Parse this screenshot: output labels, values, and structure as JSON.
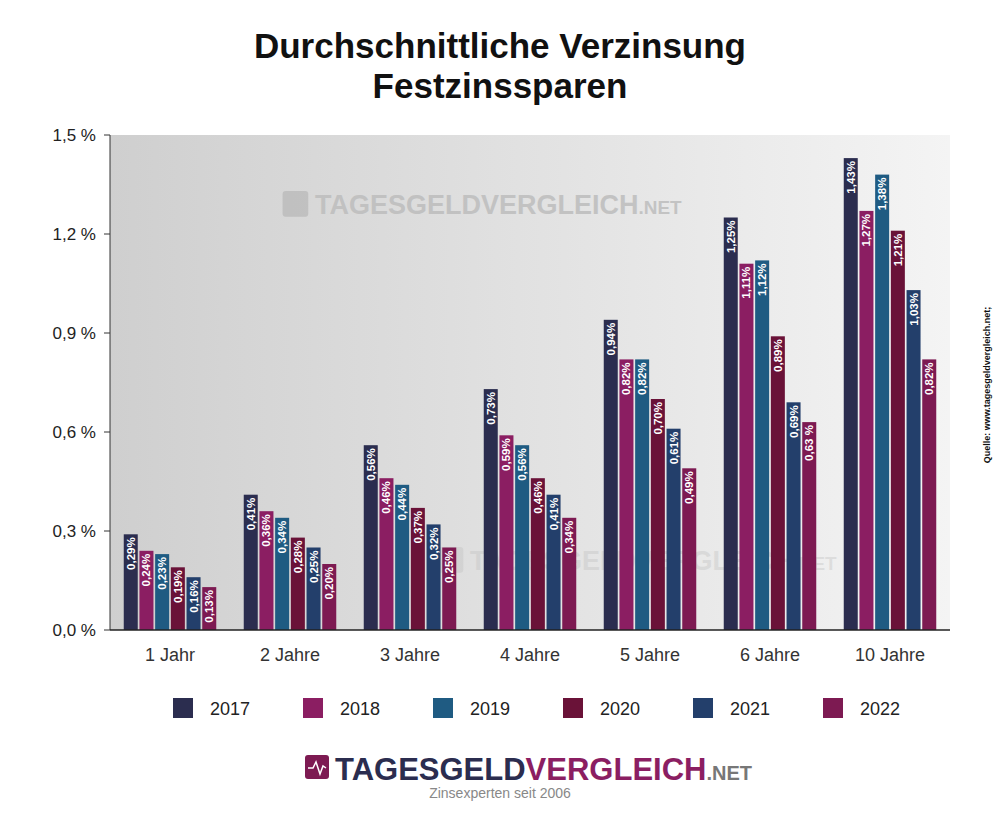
{
  "chart_data": {
    "type": "bar",
    "title": [
      "Durchschnittliche Verzinsung",
      "Festzinssparen"
    ],
    "categories": [
      "1 Jahr",
      "2 Jahre",
      "3 Jahre",
      "4 Jahre",
      "5 Jahre",
      "6 Jahre",
      "10 Jahre"
    ],
    "series": [
      {
        "name": "2017",
        "color": "#2b2d4f",
        "values": [
          0.29,
          0.41,
          0.56,
          0.73,
          0.94,
          1.25,
          1.43
        ],
        "value_labels": [
          "0,29%",
          "0,41%",
          "0,56%",
          "0,73%",
          "0,94%",
          "1,25%",
          "1,43%"
        ]
      },
      {
        "name": "2018",
        "color": "#8b1e62",
        "values": [
          0.24,
          0.36,
          0.46,
          0.59,
          0.82,
          1.11,
          1.27
        ],
        "value_labels": [
          "0,24%",
          "0,36%",
          "0,46%",
          "0,59%",
          "0,82%",
          "1,11%",
          "1,27%"
        ]
      },
      {
        "name": "2019",
        "color": "#1f5b82",
        "values": [
          0.23,
          0.34,
          0.44,
          0.56,
          0.82,
          1.12,
          1.38
        ],
        "value_labels": [
          "0,23%",
          "0,34%",
          "0,44%",
          "0,56%",
          "0,82%",
          "1,12%",
          "1,38%"
        ]
      },
      {
        "name": "2020",
        "color": "#6a1238",
        "values": [
          0.19,
          0.28,
          0.37,
          0.46,
          0.7,
          0.89,
          1.21
        ],
        "value_labels": [
          "0,19%",
          "0,28%",
          "0,37%",
          "0,46%",
          "0,70%",
          "0,89%",
          "1,21%"
        ]
      },
      {
        "name": "2021",
        "color": "#233f6b",
        "values": [
          0.16,
          0.25,
          0.32,
          0.41,
          0.61,
          0.69,
          1.03
        ],
        "value_labels": [
          "0,16%",
          "0,25%",
          "0,32%",
          "0,41%",
          "0,61%",
          "0,69%",
          "1,03%"
        ]
      },
      {
        "name": "2022",
        "color": "#7d1a52",
        "values": [
          0.13,
          0.2,
          0.25,
          0.34,
          0.49,
          0.63,
          0.82
        ],
        "value_labels": [
          "0,13%",
          "0,20%",
          "0,25%",
          "0,34%",
          "0,49%",
          "0,63 %",
          "0,82%"
        ]
      }
    ],
    "ylim": [
      0,
      1.5
    ],
    "yticks": [
      {
        "value": 0,
        "label": "0,0 %"
      },
      {
        "value": 0.3,
        "label": "0,3 %"
      },
      {
        "value": 0.6,
        "label": "0,6 %"
      },
      {
        "value": 0.9,
        "label": "0,9 %"
      },
      {
        "value": 1.2,
        "label": "1,2 %"
      },
      {
        "value": 1.5,
        "label": "1,5 %"
      }
    ],
    "grid": false,
    "legend": "bottom",
    "data_labels": true,
    "annotations": {
      "watermark": [
        "TAGESGELDVERGLEICH",
        ".NET"
      ],
      "source": "Quelle: www.tagesgeldvergleich.net;",
      "logo": [
        "TAGESGELD",
        "VERGLEICH",
        ".NET"
      ],
      "tagline": "Zinsexperten seit 2006"
    }
  }
}
